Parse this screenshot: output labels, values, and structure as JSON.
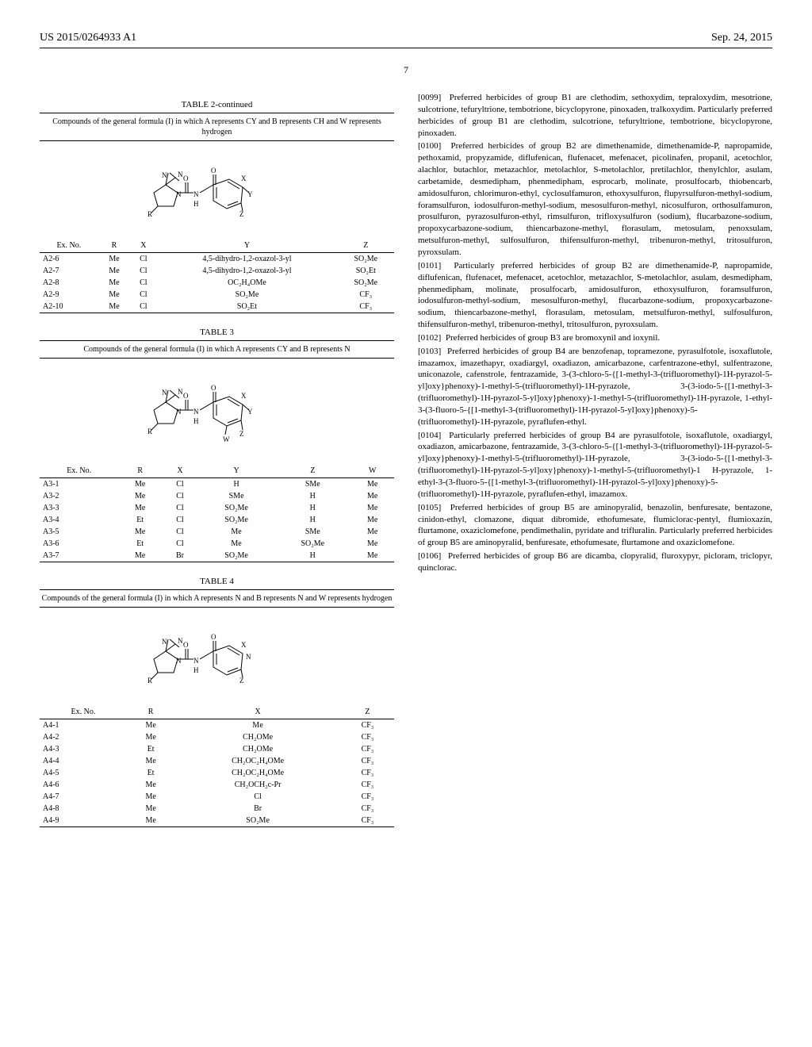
{
  "header": {
    "pub_number": "US 2015/0264933 A1",
    "date": "Sep. 24, 2015",
    "page": "7"
  },
  "table2": {
    "title": "TABLE 2-continued",
    "caption": "Compounds of the general formula (I) in which A represents CY and B represents CH and W represents hydrogen",
    "columns": [
      "Ex. No.",
      "R",
      "X",
      "Y",
      "Z"
    ],
    "rows": [
      [
        "A2-6",
        "Me",
        "Cl",
        "4,5-dihydro-1,2-oxazol-3-yl",
        "SO₂Me"
      ],
      [
        "A2-7",
        "Me",
        "Cl",
        "4,5-dihydro-1,2-oxazol-3-yl",
        "SO₂Et"
      ],
      [
        "A2-8",
        "Me",
        "Cl",
        "OC₂H₄OMe",
        "SO₂Me"
      ],
      [
        "A2-9",
        "Me",
        "Cl",
        "SO₂Me",
        "CF₃"
      ],
      [
        "A2-10",
        "Me",
        "Cl",
        "SO₂Et",
        "CF₃"
      ]
    ]
  },
  "table3": {
    "title": "TABLE 3",
    "caption": "Compounds of the general formula (I) in which A represents CY and B represents N",
    "columns": [
      "Ex. No.",
      "R",
      "X",
      "Y",
      "Z",
      "W"
    ],
    "rows": [
      [
        "A3-1",
        "Me",
        "Cl",
        "H",
        "SMe",
        "Me"
      ],
      [
        "A3-2",
        "Me",
        "Cl",
        "SMe",
        "H",
        "Me"
      ],
      [
        "A3-3",
        "Me",
        "Cl",
        "SO₂Me",
        "H",
        "Me"
      ],
      [
        "A3-4",
        "Et",
        "Cl",
        "SO₂Me",
        "H",
        "Me"
      ],
      [
        "A3-5",
        "Me",
        "Cl",
        "Me",
        "SMe",
        "Me"
      ],
      [
        "A3-6",
        "Et",
        "Cl",
        "Me",
        "SO₂Me",
        "Me"
      ],
      [
        "A3-7",
        "Me",
        "Br",
        "SO₂Me",
        "H",
        "Me"
      ]
    ]
  },
  "table4": {
    "title": "TABLE 4",
    "caption": "Compounds of the general formula (I) in which A represents N and B represents N and W represents hydrogen",
    "columns": [
      "Ex. No.",
      "R",
      "X",
      "Z"
    ],
    "rows": [
      [
        "A4-1",
        "Me",
        "Me",
        "CF₃"
      ],
      [
        "A4-2",
        "Me",
        "CH₂OMe",
        "CF₃"
      ],
      [
        "A4-3",
        "Et",
        "CH₂OMe",
        "CF₃"
      ],
      [
        "A4-4",
        "Me",
        "CH₂OC₂H₄OMe",
        "CF₃"
      ],
      [
        "A4-5",
        "Et",
        "CH₂OC₂H₄OMe",
        "CF₃"
      ],
      [
        "A4-6",
        "Me",
        "CH₂OCH₂c-Pr",
        "CF₃"
      ],
      [
        "A4-7",
        "Me",
        "Cl",
        "CF₃"
      ],
      [
        "A4-8",
        "Me",
        "Br",
        "CF₃"
      ],
      [
        "A4-9",
        "Me",
        "SO₂Me",
        "CF₃"
      ]
    ]
  },
  "paragraphs": {
    "p0099": {
      "num": "[0099]",
      "text": "Preferred herbicides of group B1 are clethodim, sethoxydim, tepraloxydim, mesotrione, sulcotrione, tefuryltrione, tembotrione, bicyclopyrone, pinoxaden, tralkoxydim. Particularly preferred herbicides of group B1 are clethodim, sulcotrione, tefuryltrione, tembotrione, bicyclopyrone, pinoxaden."
    },
    "p0100": {
      "num": "[0100]",
      "text": "Preferred herbicides of group B2 are dimethenamide, dimethenamide-P, napropamide, pethoxamid, propyzamide, diflufenican, flufenacet, mefenacet, picolinafen, propanil, acetochlor, alachlor, butachlor, metazachlor, metolachlor, S-metolachlor, pretilachlor, thenylchlor, asulam, carbetamide, desmedipham, phenmedipham, esprocarb, molinate, prosulfocarb, thiobencarb, amidosulfuron, chlorimuron-ethyl, cyclosulfamuron, ethoxysulfuron, flupyrsulfuron-methyl-sodium, foramsulfuron, iodosulfuron-methyl-sodium, mesosulfuron-methyl, nicosulfuron, orthosulfamuron, prosulfuron, pyrazosulfuron-ethyl, rimsulfuron, trifloxysulfuron (sodium), flucarbazone-sodium, propoxycarbazone-sodium, thiencarbazone-methyl, florasulam, metosulam, penoxsulam, metsulfuron-methyl, sulfosulfuron, thifensulfuron-methyl, tribenuron-methyl, tritosulfuron, pyroxsulam."
    },
    "p0101": {
      "num": "[0101]",
      "text": "Particularly preferred herbicides of group B2 are dimethenamide-P, napropamide, diflufenican, flufenacet, mefenacet, acetochlor, metazachlor, S-metolachlor, asulam, desmedipham, phenmedipham, molinate, prosulfocarb, amidosulfuron, ethoxysulfuron, foramsulfuron, iodosulfuron-methyl-sodium, mesosulfuron-methyl, flucarbazone-sodium, propoxycarbazone-sodium, thiencarbazone-methyl, florasulam, metosulam, metsulfuron-methyl, sulfosulfuron, thifensulfuron-methyl, tribenuron-methyl, tritosulfuron, pyroxsulam."
    },
    "p0102": {
      "num": "[0102]",
      "text": "Preferred herbicides of group B3 are bromoxynil and ioxynil."
    },
    "p0103": {
      "num": "[0103]",
      "text": "Preferred herbicides of group B4 are benzofenap, topramezone, pyrasulfotole, isoxaflutole, imazamox, imazethapyr, oxadiargyl, oxadiazon, amicarbazone, carfentrazone-ethyl, sulfentrazone, uniconazole, cafenstrole, fentrazamide, 3-(3-chloro-5-{[1-methyl-3-(trifluoromethyl)-1H-pyrazol-5-yl]oxy}phenoxy)-1-methyl-5-(trifluoromethyl)-1H-pyrazole, 3-(3-iodo-5-{[1-methyl-3-(trifluoromethyl)-1H-pyrazol-5-yl]oxy}phenoxy)-1-methyl-5-(trifluoromethyl)-1H-pyrazole, 1-ethyl-3-(3-fluoro-5-{[1-methyl-3-(trifluoromethyl)-1H-pyrazol-5-yl]oxy}phenoxy)-5-(trifluoromethyl)-1H-pyrazole, pyraflufen-ethyl."
    },
    "p0104": {
      "num": "[0104]",
      "text": "Particularly preferred herbicides of group B4 are pyrasulfotole, isoxaflutole, oxadiargyl, oxadiazon, amicarbazone, fentrazamide, 3-(3-chloro-5-{[1-methyl-3-(trifluoromethyl)-1H-pyrazol-5-yl]oxy}phenoxy)-1-methyl-5-(trifluoromethyl)-1H-pyrazole, 3-(3-iodo-5-{[1-methyl-3-(trifluoromethyl)-1H-pyrazol-5-yl]oxy}phenoxy)-1-methyl-5-(trifluoromethyl)-1 H-pyrazole, 1-ethyl-3-(3-fluoro-5-{[1-methyl-3-(trifluoromethyl)-1H-pyrazol-5-yl]oxy}phenoxy)-5-(trifluoromethyl)-1H-pyrazole, pyraflufen-ethyl, imazamox."
    },
    "p0105": {
      "num": "[0105]",
      "text": "Preferred herbicides of group B5 are aminopyralid, benazolin, benfuresate, bentazone, cinidon-ethyl, clomazone, diquat dibromide, ethofumesate, flumiclorac-pentyl, flumioxazin, flurtamone, oxaziclomefone, pendimethalin, pyridate and trifluralin. Particularly preferred herbicides of group B5 are aminopyralid, benfuresate, ethofumesate, flurtamone and oxaziclomefone."
    },
    "p0106": {
      "num": "[0106]",
      "text": "Preferred herbicides of group B6 are dicamba, clopyralid, fluroxypyr, picloram, triclopyr, quinclorac."
    }
  }
}
